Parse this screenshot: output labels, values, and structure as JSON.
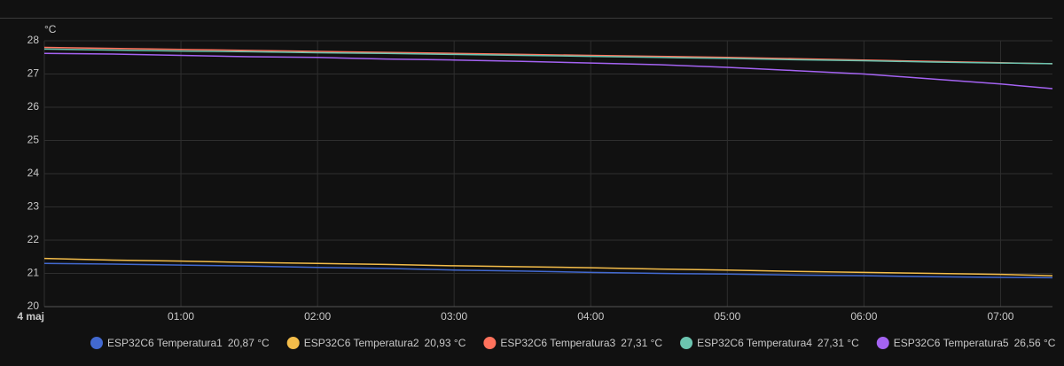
{
  "chart_data": {
    "type": "line",
    "y_unit": "°C",
    "x": [
      0,
      0.5,
      1,
      1.5,
      2,
      2.5,
      3,
      3.5,
      4,
      4.5,
      5,
      5.5,
      6,
      6.5,
      7,
      7.38
    ],
    "xlim": [
      0,
      7.38
    ],
    "xticks": [
      {
        "value": 0,
        "label": "4 maj"
      },
      {
        "value": 1,
        "label": "01:00"
      },
      {
        "value": 2,
        "label": "02:00"
      },
      {
        "value": 3,
        "label": "03:00"
      },
      {
        "value": 4,
        "label": "04:00"
      },
      {
        "value": 5,
        "label": "05:00"
      },
      {
        "value": 6,
        "label": "06:00"
      },
      {
        "value": 7,
        "label": "07:00"
      }
    ],
    "ylim": [
      20,
      28
    ],
    "yticks": [
      20,
      21,
      22,
      23,
      24,
      25,
      26,
      27,
      28
    ],
    "grid": true,
    "series": [
      {
        "name": "ESP32C6 Temperatura1",
        "state": "20,87 °C",
        "color": "#4269d0",
        "values": [
          21.3,
          21.28,
          21.25,
          21.22,
          21.18,
          21.15,
          21.1,
          21.07,
          21.03,
          21.0,
          20.98,
          20.95,
          20.93,
          20.9,
          20.88,
          20.87
        ]
      },
      {
        "name": "ESP32C6 Temperatura2",
        "state": "20,93 °C",
        "color": "#f4bd4a",
        "values": [
          21.45,
          21.4,
          21.37,
          21.33,
          21.3,
          21.27,
          21.23,
          21.2,
          21.17,
          21.13,
          21.1,
          21.06,
          21.03,
          21.0,
          20.97,
          20.93
        ]
      },
      {
        "name": "ESP32C6 Temperatura3",
        "state": "27,31 °C",
        "color": "#ff725c",
        "values": [
          27.8,
          27.77,
          27.74,
          27.71,
          27.68,
          27.65,
          27.62,
          27.59,
          27.56,
          27.53,
          27.5,
          27.46,
          27.42,
          27.38,
          27.34,
          27.31
        ]
      },
      {
        "name": "ESP32C6 Temperatura4",
        "state": "27,31 °C",
        "color": "#6cc5b0",
        "values": [
          27.75,
          27.72,
          27.69,
          27.67,
          27.64,
          27.62,
          27.59,
          27.56,
          27.53,
          27.5,
          27.47,
          27.43,
          27.4,
          27.36,
          27.33,
          27.31
        ]
      },
      {
        "name": "ESP32C6 Temperatura5",
        "state": "26,56 °C",
        "color": "#a463f2",
        "values": [
          27.62,
          27.6,
          27.56,
          27.52,
          27.5,
          27.45,
          27.42,
          27.38,
          27.33,
          27.28,
          27.2,
          27.1,
          27.0,
          26.85,
          26.7,
          26.56
        ]
      }
    ]
  }
}
